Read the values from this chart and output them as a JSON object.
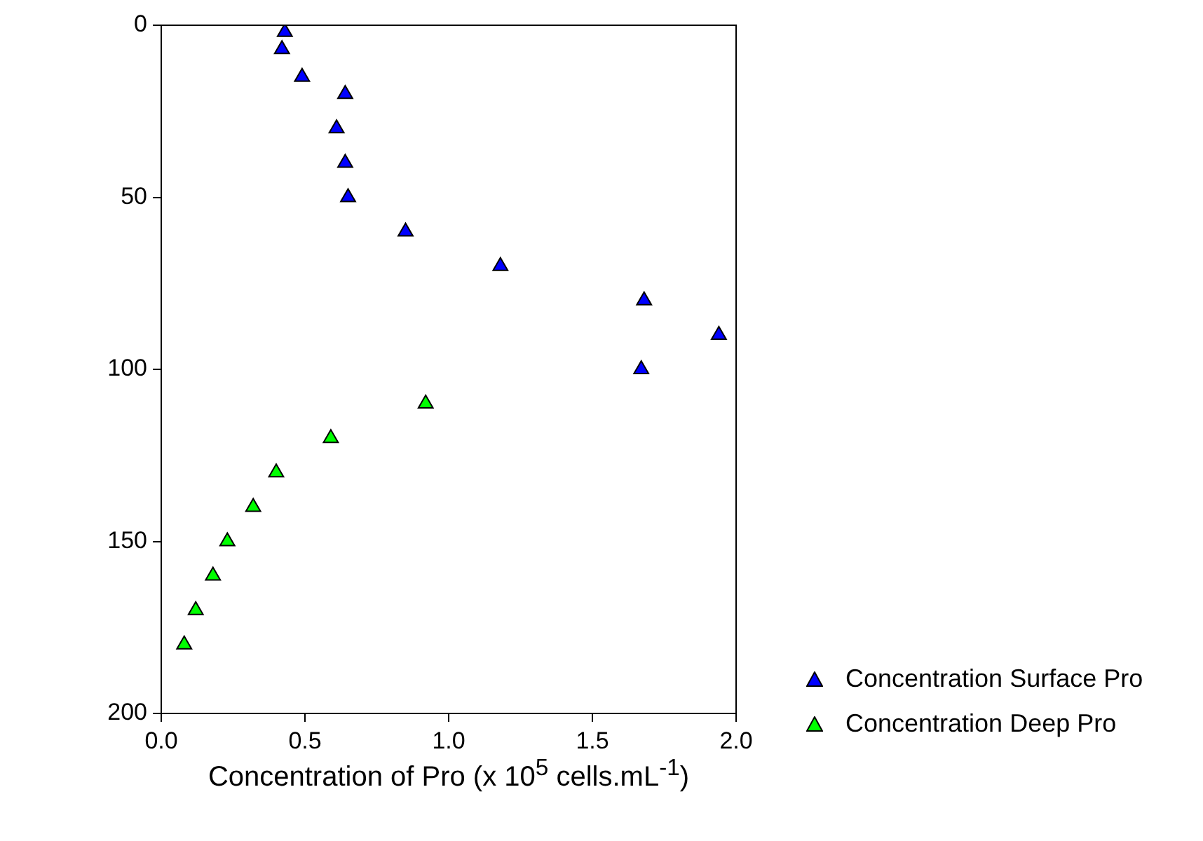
{
  "chart_data": {
    "type": "scatter",
    "xlabel": "Concentration of Pro (x 10$^{5}$ cells.mL$^{-1}$)",
    "xlim": [
      0,
      2
    ],
    "xticks": [
      {
        "value": 0,
        "label": "0.0"
      },
      {
        "value": 0.5,
        "label": "0.5"
      },
      {
        "value": 1,
        "label": "1.0"
      },
      {
        "value": 1.5,
        "label": "1.5"
      },
      {
        "value": 2,
        "label": "2.0"
      }
    ],
    "ylim": [
      200,
      0
    ],
    "yticks": [
      0,
      50,
      100,
      150,
      200
    ],
    "grid": false,
    "legend": "bottom right",
    "marker": "triangle",
    "series": [
      {
        "name": "Concentration Surface Pro",
        "color": "#0000ff",
        "x": [
          0.43,
          0.42,
          0.49,
          0.64,
          0.61,
          0.64,
          0.65,
          0.85,
          1.18,
          1.68,
          1.94,
          1.67
        ],
        "values": [
          2,
          7,
          15,
          20,
          30,
          40,
          50,
          60,
          70,
          80,
          90,
          100
        ]
      },
      {
        "name": "Concentration Deep Pro",
        "color": "#00ff00",
        "x": [
          0.92,
          0.59,
          0.4,
          0.32,
          0.23,
          0.18,
          0.12,
          0.08
        ],
        "values": [
          110,
          120,
          130,
          140,
          150,
          160,
          170,
          180
        ]
      }
    ]
  }
}
